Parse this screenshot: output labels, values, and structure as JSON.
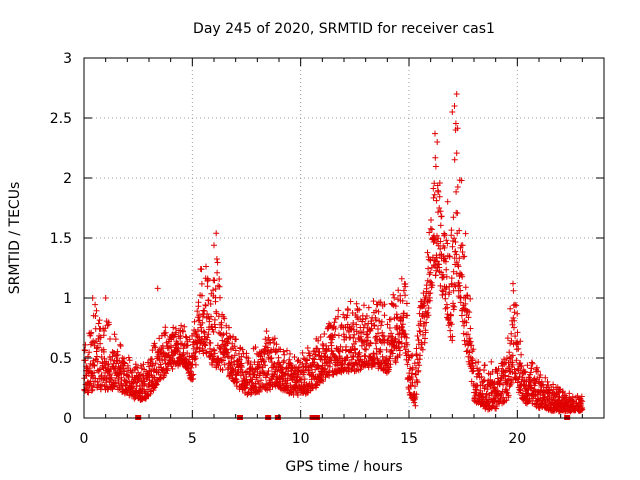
{
  "chart_data": {
    "type": "scatter",
    "title": "Day 245 of 2020, SRMTID for receiver cas1",
    "xlabel": "GPS time / hours",
    "ylabel": "SRMTID / TECUs",
    "xlim": [
      0,
      24
    ],
    "ylim": [
      0,
      3
    ],
    "xticks": [
      0,
      5,
      10,
      15,
      20
    ],
    "xtick_labels": [
      "0",
      "5",
      "10",
      "15",
      "20"
    ],
    "yticks": [
      0,
      0.5,
      1,
      1.5,
      2,
      2.5,
      3
    ],
    "ytick_labels": [
      "0",
      "0.5",
      "1",
      "1.5",
      "2",
      "2.5",
      "3"
    ],
    "grid": true,
    "marker": "+",
    "series_color": "#e00000",
    "envelope": [
      [
        0.0,
        0.12,
        0.75
      ],
      [
        0.5,
        0.15,
        0.95
      ],
      [
        1.0,
        0.15,
        0.85
      ],
      [
        1.5,
        0.18,
        0.7
      ],
      [
        2.0,
        0.15,
        0.55
      ],
      [
        2.5,
        0.1,
        0.45
      ],
      [
        3.0,
        0.1,
        0.5
      ],
      [
        3.5,
        0.25,
        0.75
      ],
      [
        4.0,
        0.35,
        0.8
      ],
      [
        4.5,
        0.4,
        0.85
      ],
      [
        5.0,
        0.25,
        0.7
      ],
      [
        5.3,
        0.4,
        1.2
      ],
      [
        5.6,
        0.45,
        1.35
      ],
      [
        6.0,
        0.25,
        1.55
      ],
      [
        6.5,
        0.35,
        0.8
      ],
      [
        7.0,
        0.2,
        0.7
      ],
      [
        7.5,
        0.15,
        0.55
      ],
      [
        8.0,
        0.15,
        0.6
      ],
      [
        8.5,
        0.15,
        0.85
      ],
      [
        9.0,
        0.2,
        0.6
      ],
      [
        9.5,
        0.15,
        0.55
      ],
      [
        10.0,
        0.15,
        0.5
      ],
      [
        10.5,
        0.15,
        0.75
      ],
      [
        11.0,
        0.25,
        0.7
      ],
      [
        11.5,
        0.3,
        0.85
      ],
      [
        12.0,
        0.3,
        0.95
      ],
      [
        12.5,
        0.3,
        1.05
      ],
      [
        13.0,
        0.35,
        0.95
      ],
      [
        13.5,
        0.35,
        1.0
      ],
      [
        14.0,
        0.3,
        0.95
      ],
      [
        14.5,
        0.4,
        1.1
      ],
      [
        14.8,
        0.5,
        1.35
      ],
      [
        15.0,
        0.15,
        0.6
      ],
      [
        15.3,
        0.05,
        0.5
      ],
      [
        15.5,
        0.4,
        0.95
      ],
      [
        15.8,
        0.6,
        1.3
      ],
      [
        16.0,
        0.9,
        1.8
      ],
      [
        16.3,
        1.1,
        2.35
      ],
      [
        16.6,
        0.8,
        1.8
      ],
      [
        17.0,
        0.4,
        2.0
      ],
      [
        17.2,
        1.0,
        2.7
      ],
      [
        17.5,
        0.5,
        1.8
      ],
      [
        17.8,
        0.3,
        1.1
      ],
      [
        18.0,
        0.1,
        0.5
      ],
      [
        18.5,
        0.02,
        0.45
      ],
      [
        19.0,
        0.02,
        0.5
      ],
      [
        19.5,
        0.05,
        0.7
      ],
      [
        19.8,
        0.2,
        1.12
      ],
      [
        20.0,
        0.15,
        0.9
      ],
      [
        20.3,
        0.08,
        0.5
      ],
      [
        20.8,
        0.05,
        0.45
      ],
      [
        21.5,
        0.03,
        0.3
      ],
      [
        22.0,
        0.03,
        0.25
      ],
      [
        22.5,
        0.03,
        0.2
      ],
      [
        23.0,
        0.05,
        0.18
      ]
    ],
    "points_per_hour": 120,
    "outliers": [
      {
        "x": 3.4,
        "y": 1.08
      },
      {
        "x": 6.0,
        "y": 1.44
      },
      {
        "x": 6.1,
        "y": 1.54
      },
      {
        "x": 16.2,
        "y": 2.37
      },
      {
        "x": 16.3,
        "y": 2.3
      },
      {
        "x": 17.0,
        "y": 2.55
      },
      {
        "x": 17.1,
        "y": 2.6
      },
      {
        "x": 17.2,
        "y": 2.7
      },
      {
        "x": 17.15,
        "y": 2.4
      },
      {
        "x": 19.8,
        "y": 1.12
      },
      {
        "x": 0.4,
        "y": 1.0
      },
      {
        "x": 1.0,
        "y": 1.0
      }
    ],
    "baseline_markers": [
      2.5,
      7.2,
      8.5,
      8.95,
      10.55,
      10.65,
      10.75,
      22.3
    ]
  }
}
